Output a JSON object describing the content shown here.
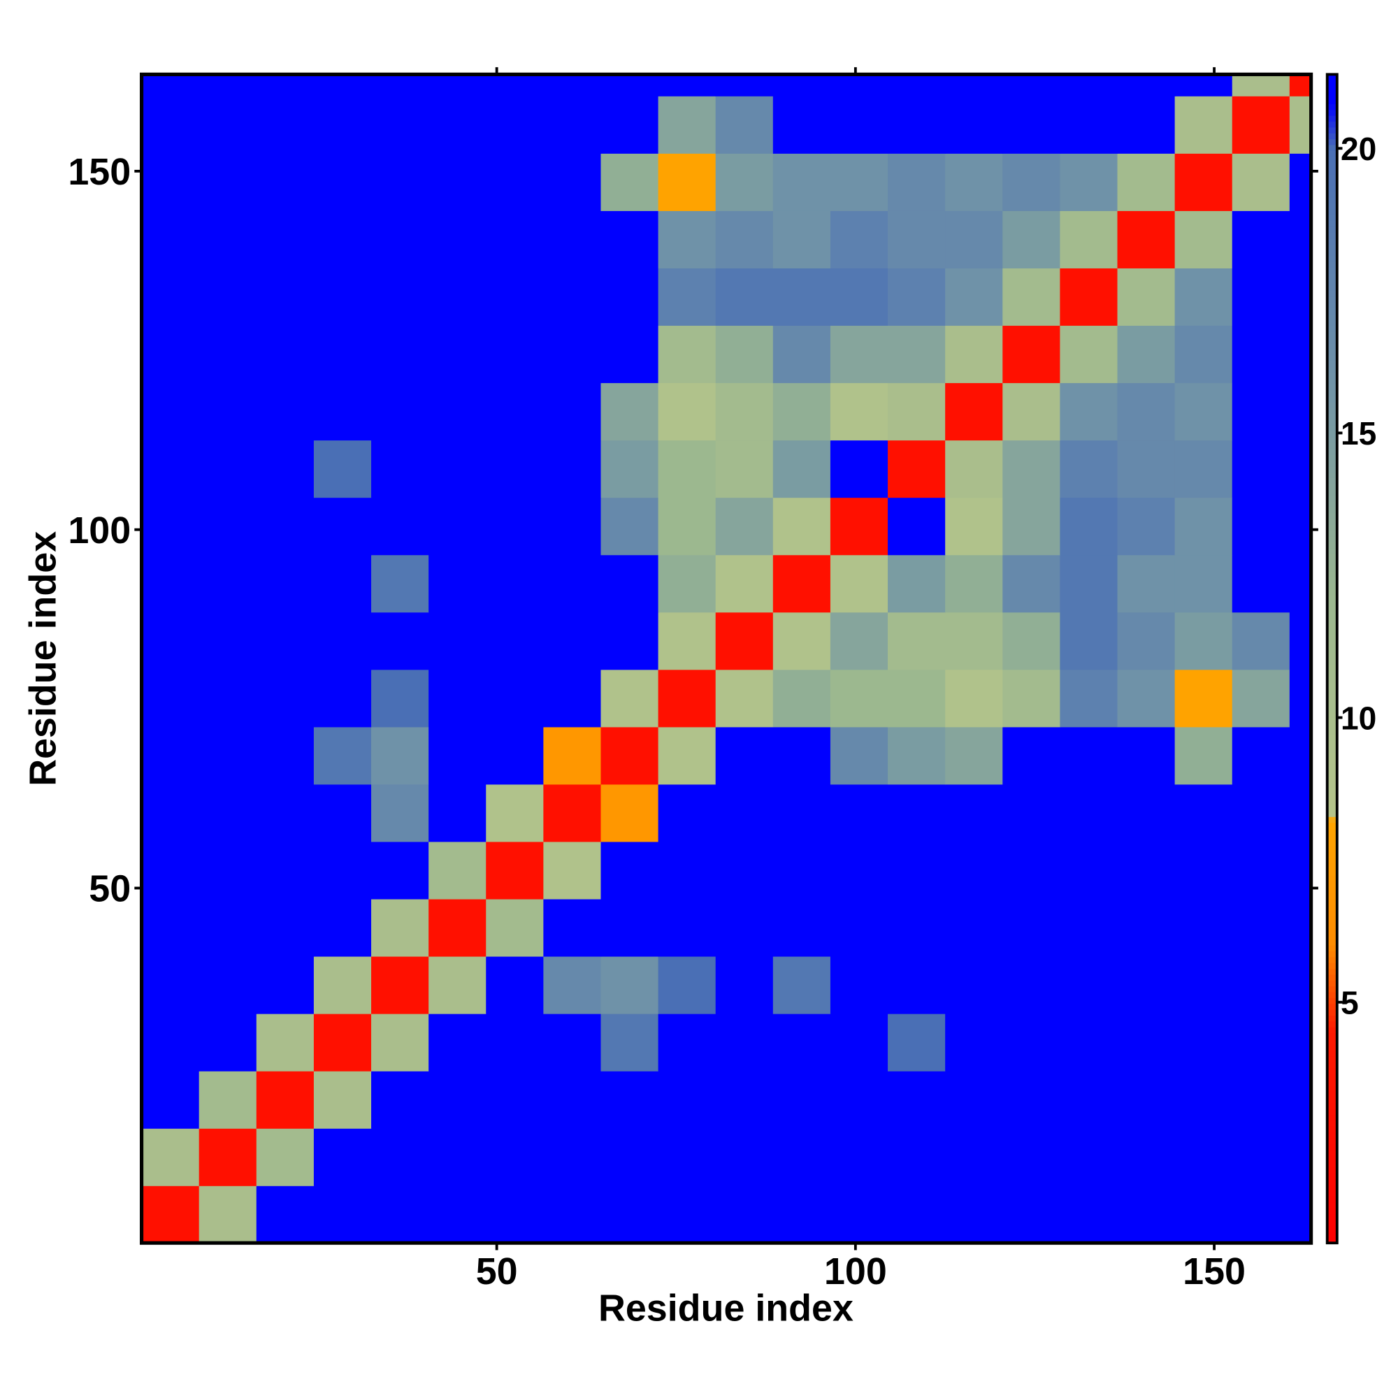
{
  "chart_data": {
    "type": "heatmap",
    "x_label": "Residue index",
    "y_label": "Residue index",
    "xlim": [
      0.5,
      163.5
    ],
    "ylim": [
      0.5,
      163.5
    ],
    "xticks": [
      50,
      100,
      150
    ],
    "yticks": [
      50,
      100,
      150
    ],
    "xbins": [
      0.5,
      8.5,
      16.5,
      24.5,
      32.5,
      40.5,
      48.5,
      56.5,
      64.5,
      72.5,
      80.5,
      88.5,
      96.5,
      104.5,
      112.5,
      120.5,
      128.5,
      136.5,
      144.5,
      152.5,
      160.5,
      163.5
    ],
    "ybins": [
      0.5,
      8.5,
      16.5,
      24.5,
      32.5,
      40.5,
      48.5,
      56.5,
      64.5,
      72.5,
      80.5,
      88.5,
      96.5,
      104.5,
      112.5,
      120.5,
      128.5,
      136.5,
      144.5,
      152.5,
      160.5,
      163.5
    ],
    "z": [
      [
        3,
        10,
        21,
        21,
        21,
        21,
        21,
        21,
        21,
        21,
        21,
        21,
        21,
        21,
        21,
        21,
        21,
        21,
        21,
        21,
        21
      ],
      [
        10,
        3,
        11,
        21,
        21,
        21,
        21,
        21,
        21,
        21,
        21,
        21,
        21,
        21,
        21,
        21,
        21,
        21,
        21,
        21,
        21
      ],
      [
        21,
        11,
        3,
        10,
        21,
        21,
        21,
        21,
        21,
        21,
        21,
        21,
        21,
        21,
        21,
        21,
        21,
        21,
        21,
        21,
        21
      ],
      [
        21,
        21,
        10,
        3,
        10,
        21,
        21,
        21,
        19,
        21,
        21,
        21,
        21,
        20,
        21,
        21,
        21,
        21,
        21,
        21,
        21
      ],
      [
        21,
        21,
        21,
        10,
        3,
        10,
        21,
        17,
        16,
        20,
        21,
        19,
        21,
        21,
        21,
        21,
        21,
        21,
        21,
        21,
        21
      ],
      [
        21,
        21,
        21,
        21,
        10,
        3,
        11,
        21,
        21,
        21,
        21,
        21,
        21,
        21,
        21,
        21,
        21,
        21,
        21,
        21,
        21
      ],
      [
        21,
        21,
        21,
        21,
        21,
        11,
        3,
        9,
        21,
        21,
        21,
        21,
        21,
        21,
        21,
        21,
        21,
        21,
        21,
        21,
        21
      ],
      [
        21,
        21,
        21,
        21,
        17,
        21,
        9,
        3,
        7,
        21,
        21,
        21,
        21,
        21,
        21,
        21,
        21,
        21,
        21,
        21,
        21
      ],
      [
        21,
        21,
        21,
        19,
        16,
        21,
        21,
        7,
        3,
        9,
        21,
        21,
        17,
        15,
        14,
        21,
        21,
        21,
        13,
        21,
        21
      ],
      [
        21,
        21,
        21,
        21,
        20,
        21,
        21,
        21,
        9,
        3,
        9,
        13,
        12,
        12,
        9,
        11,
        18,
        16,
        8,
        14,
        21
      ],
      [
        21,
        21,
        21,
        21,
        21,
        21,
        21,
        21,
        21,
        9,
        3,
        9,
        14,
        11,
        11,
        13,
        19,
        17,
        15,
        17,
        21
      ],
      [
        21,
        21,
        21,
        21,
        19,
        21,
        21,
        21,
        21,
        13,
        9,
        3,
        9,
        15,
        13,
        17,
        19,
        16,
        16,
        21,
        21
      ],
      [
        21,
        21,
        21,
        21,
        21,
        21,
        21,
        21,
        17,
        12,
        14,
        9,
        3,
        21,
        9,
        14,
        19,
        18,
        16,
        21,
        21
      ],
      [
        21,
        21,
        21,
        20,
        21,
        21,
        21,
        21,
        15,
        12,
        11,
        15,
        21,
        3,
        10,
        14,
        18,
        17,
        17,
        21,
        21
      ],
      [
        21,
        21,
        21,
        21,
        21,
        21,
        21,
        21,
        14,
        9,
        11,
        13,
        9,
        10,
        3,
        10,
        16,
        17,
        16,
        21,
        21
      ],
      [
        21,
        21,
        21,
        21,
        21,
        21,
        21,
        21,
        21,
        11,
        13,
        17,
        14,
        14,
        10,
        3,
        11,
        15,
        17,
        21,
        21
      ],
      [
        21,
        21,
        21,
        21,
        21,
        21,
        21,
        21,
        21,
        18,
        19,
        19,
        19,
        18,
        16,
        11,
        3,
        11,
        16,
        21,
        21
      ],
      [
        21,
        21,
        21,
        21,
        21,
        21,
        21,
        21,
        21,
        16,
        17,
        16,
        18,
        17,
        17,
        15,
        11,
        3,
        11,
        21,
        21
      ],
      [
        21,
        21,
        21,
        21,
        21,
        21,
        21,
        21,
        13,
        8,
        15,
        16,
        16,
        17,
        16,
        17,
        16,
        11,
        3,
        10,
        21
      ],
      [
        21,
        21,
        21,
        21,
        21,
        21,
        21,
        21,
        21,
        14,
        17,
        21,
        21,
        21,
        21,
        21,
        21,
        21,
        10,
        3,
        10
      ],
      [
        21,
        21,
        21,
        21,
        21,
        21,
        21,
        21,
        21,
        21,
        21,
        21,
        21,
        21,
        21,
        21,
        21,
        21,
        21,
        10,
        3
      ]
    ],
    "zlim": [
      0.77,
      21.3
    ],
    "zticks": [
      5,
      10,
      15,
      20
    ],
    "colorscale": [
      [
        0.77,
        "#ff0000"
      ],
      [
        4.5,
        "#ff1a00"
      ],
      [
        6,
        "#ff8c00"
      ],
      [
        8.2,
        "#ffa500"
      ],
      [
        8.3,
        "#b5c48a"
      ],
      [
        12,
        "#9cb88f"
      ],
      [
        16,
        "#6f92a8"
      ],
      [
        20,
        "#4a6fb5"
      ],
      [
        20.8,
        "#0000ff"
      ],
      [
        21.3,
        "#0000ff"
      ]
    ]
  }
}
